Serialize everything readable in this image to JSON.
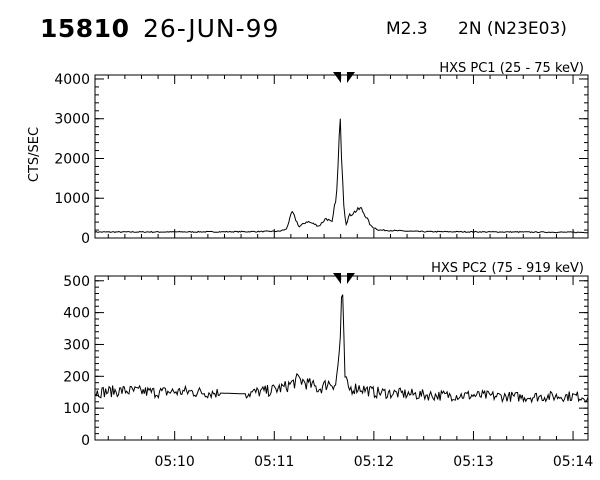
{
  "header": {
    "event_number": "15810",
    "date": "26-JUN-99",
    "goes_class": "M2.3",
    "location": "2N (N23E03)"
  },
  "chart_data": [
    {
      "type": "line",
      "title": "HXS PC1 (25 - 75 keV)",
      "ylabel": "CTS/SEC",
      "xlim": [
        "05:09:12",
        "05:14:09"
      ],
      "ylim": [
        0,
        4100
      ],
      "yticks": [
        0,
        1000,
        2000,
        3000,
        4000
      ],
      "marker_time": "05:11:42",
      "x_min": [
        9.2,
        10.4,
        10.8,
        11.05,
        11.12,
        11.18,
        11.25,
        11.33,
        11.45,
        11.52,
        11.58,
        11.63,
        11.66,
        11.7,
        11.72,
        11.75,
        11.8,
        11.87,
        11.93,
        11.97,
        12.05,
        12.25,
        12.5,
        13.0,
        13.5,
        14.0,
        14.15
      ],
      "values": [
        150,
        155,
        160,
        170,
        220,
        650,
        280,
        420,
        300,
        500,
        380,
        1200,
        3000,
        800,
        350,
        550,
        650,
        750,
        500,
        300,
        200,
        180,
        160,
        155,
        150,
        145,
        140
      ]
    },
    {
      "type": "line",
      "title": "HXS PC2 (75 - 919 keV)",
      "ylabel": "",
      "xlim": [
        "05:09:12",
        "05:14:09"
      ],
      "ylim": [
        0,
        515
      ],
      "yticks": [
        0,
        100,
        200,
        300,
        400,
        500
      ],
      "marker_time": "05:11:42",
      "x_min": [
        9.2,
        9.5,
        9.8,
        10.1,
        10.4,
        10.7,
        10.95,
        11.1,
        11.25,
        11.35,
        11.45,
        11.55,
        11.62,
        11.66,
        11.68,
        11.71,
        11.74,
        11.85,
        12.0,
        12.3,
        12.6,
        13.0,
        13.5,
        14.0,
        14.15
      ],
      "values": [
        150,
        155,
        150,
        152,
        148,
        145,
        155,
        165,
        190,
        175,
        160,
        180,
        175,
        300,
        480,
        200,
        160,
        165,
        150,
        145,
        140,
        140,
        135,
        138,
        135
      ]
    }
  ],
  "xaxis": {
    "tick_labels": [
      "05:10",
      "05:11",
      "05:12",
      "05:13",
      "05:14"
    ],
    "tick_minutes": [
      10,
      11,
      12,
      13,
      14
    ]
  }
}
